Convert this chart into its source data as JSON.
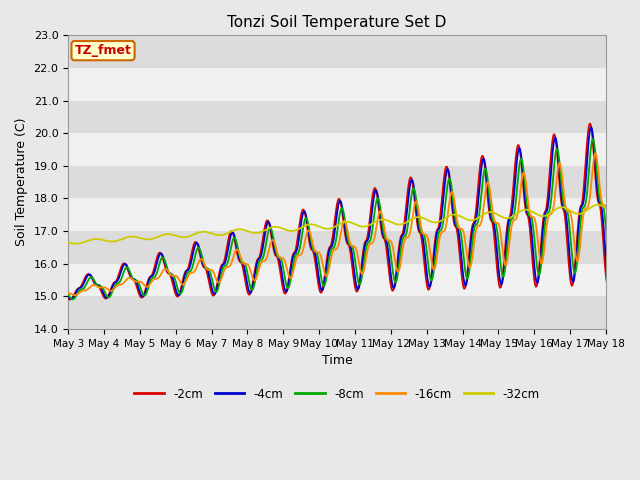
{
  "title": "Tonzi Soil Temperature Set D",
  "xlabel": "Time",
  "ylabel": "Soil Temperature (C)",
  "annotation": "TZ_fmet",
  "annotation_color": "#cc0000",
  "annotation_bg": "#ffffcc",
  "annotation_border": "#cc6600",
  "ylim": [
    14.0,
    23.0
  ],
  "yticks": [
    14.0,
    15.0,
    16.0,
    17.0,
    18.0,
    19.0,
    20.0,
    21.0,
    22.0,
    23.0
  ],
  "xtick_labels": [
    "May 3",
    "May 4",
    "May 5",
    "May 6",
    "May 7",
    "May 8",
    "May 9",
    "May 10",
    "May 11",
    "May 12",
    "May 13",
    "May 14",
    "May 15",
    "May 16",
    "May 17",
    "May 18"
  ],
  "series_labels": [
    "-2cm",
    "-4cm",
    "-8cm",
    "-16cm",
    "-32cm"
  ],
  "series_colors": [
    "#dd0000",
    "#0000cc",
    "#00aa00",
    "#ff8800",
    "#cccc00"
  ],
  "outer_bg": "#e8e8e8",
  "plot_bg_light": "#f0f0f0",
  "plot_bg_dark": "#dcdcdc",
  "grid_color": "#ffffff",
  "title_fontsize": 11,
  "label_fontsize": 9,
  "tick_fontsize": 8
}
